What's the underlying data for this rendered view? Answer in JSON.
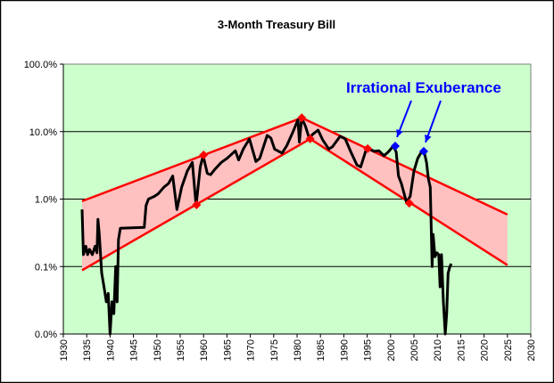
{
  "chart_data": {
    "type": "line",
    "title": "3-Month Treasury Bill",
    "xlabel": "",
    "ylabel": "",
    "xlim": [
      1930,
      2030
    ],
    "ylim": [
      0.01,
      100
    ],
    "y_scale": "log",
    "x_ticks": [
      "1930",
      "1935",
      "1940",
      "1945",
      "1950",
      "1955",
      "1960",
      "1965",
      "1970",
      "1975",
      "1980",
      "1985",
      "1990",
      "1995",
      "2000",
      "2005",
      "2010",
      "2015",
      "2020",
      "2025",
      "2030"
    ],
    "y_ticks": [
      {
        "value": 100,
        "label": "100.0%"
      },
      {
        "value": 10,
        "label": "10.0%"
      },
      {
        "value": 1,
        "label": "1.0%"
      },
      {
        "value": 0.1,
        "label": "0.1%"
      },
      {
        "value": 0.01,
        "label": "0.0%"
      }
    ],
    "grid": "horizontal",
    "legend": "none",
    "colors": {
      "plot_background": "#CCFFCC",
      "channel_fill": "#FFC0C0",
      "channel_line": "#FF0000",
      "series": "#000000",
      "annotation": "#0000FF"
    },
    "series": [
      {
        "values_unit": "percent",
        "points": [
          [
            1934.0,
            0.7
          ],
          [
            1934.3,
            0.15
          ],
          [
            1934.8,
            0.2
          ],
          [
            1935.2,
            0.15
          ],
          [
            1935.6,
            0.18
          ],
          [
            1936.2,
            0.15
          ],
          [
            1936.8,
            0.2
          ],
          [
            1937.2,
            0.16
          ],
          [
            1937.4,
            0.5
          ],
          [
            1937.7,
            0.3
          ],
          [
            1938.2,
            0.08
          ],
          [
            1938.7,
            0.05
          ],
          [
            1939.2,
            0.03
          ],
          [
            1939.6,
            0.04
          ],
          [
            1940.0,
            0.01
          ],
          [
            1940.4,
            0.03
          ],
          [
            1940.8,
            0.02
          ],
          [
            1941.2,
            0.1
          ],
          [
            1941.5,
            0.03
          ],
          [
            1941.8,
            0.25
          ],
          [
            1942.2,
            0.37
          ],
          [
            1947.3,
            0.38
          ],
          [
            1947.7,
            0.8
          ],
          [
            1948.2,
            1.0
          ],
          [
            1949.5,
            1.1
          ],
          [
            1950.3,
            1.2
          ],
          [
            1951.5,
            1.5
          ],
          [
            1952.5,
            1.7
          ],
          [
            1953.4,
            2.2
          ],
          [
            1954.3,
            0.7
          ],
          [
            1955.3,
            1.5
          ],
          [
            1956.5,
            2.6
          ],
          [
            1957.6,
            3.5
          ],
          [
            1958.4,
            0.8
          ],
          [
            1959.3,
            3.0
          ],
          [
            1959.9,
            4.4
          ],
          [
            1960.8,
            2.4
          ],
          [
            1961.5,
            2.3
          ],
          [
            1962.5,
            2.8
          ],
          [
            1963.8,
            3.5
          ],
          [
            1965.0,
            4.0
          ],
          [
            1966.8,
            5.2
          ],
          [
            1967.5,
            3.8
          ],
          [
            1968.5,
            5.5
          ],
          [
            1969.8,
            7.8
          ],
          [
            1971.2,
            3.6
          ],
          [
            1972.0,
            4.0
          ],
          [
            1973.6,
            8.8
          ],
          [
            1974.4,
            8.0
          ],
          [
            1975.2,
            5.5
          ],
          [
            1976.8,
            4.8
          ],
          [
            1977.8,
            6.2
          ],
          [
            1979.0,
            9.5
          ],
          [
            1980.2,
            15.0
          ],
          [
            1980.5,
            7.0
          ],
          [
            1981.0,
            16.0
          ],
          [
            1981.8,
            12.0
          ],
          [
            1982.6,
            8.0
          ],
          [
            1983.4,
            9.2
          ],
          [
            1984.5,
            10.5
          ],
          [
            1985.5,
            7.5
          ],
          [
            1986.8,
            5.5
          ],
          [
            1987.6,
            6.0
          ],
          [
            1989.2,
            8.5
          ],
          [
            1990.3,
            7.8
          ],
          [
            1991.5,
            5.0
          ],
          [
            1992.8,
            3.2
          ],
          [
            1993.6,
            3.0
          ],
          [
            1994.8,
            5.5
          ],
          [
            1995.5,
            5.5
          ],
          [
            1996.5,
            5.1
          ],
          [
            1997.5,
            5.2
          ],
          [
            1998.6,
            4.4
          ],
          [
            1999.5,
            5.0
          ],
          [
            2000.6,
            6.1
          ],
          [
            2001.2,
            5.0
          ],
          [
            2001.7,
            2.2
          ],
          [
            2002.3,
            1.7
          ],
          [
            2003.4,
            0.9
          ],
          [
            2004.2,
            1.1
          ],
          [
            2005.0,
            2.6
          ],
          [
            2005.8,
            4.0
          ],
          [
            2006.6,
            5.0
          ],
          [
            2007.2,
            5.0
          ],
          [
            2007.7,
            3.5
          ],
          [
            2008.1,
            2.0
          ],
          [
            2008.5,
            1.5
          ],
          [
            2008.9,
            0.1
          ],
          [
            2009.1,
            0.3
          ],
          [
            2009.5,
            0.14
          ],
          [
            2009.9,
            0.16
          ],
          [
            2010.3,
            0.15
          ],
          [
            2010.6,
            0.05
          ],
          [
            2010.9,
            0.15
          ],
          [
            2011.3,
            0.03
          ],
          [
            2011.7,
            0.01
          ],
          [
            2012.0,
            0.02
          ],
          [
            2012.3,
            0.08
          ],
          [
            2012.7,
            0.1
          ],
          [
            2013.0,
            0.11
          ]
        ]
      }
    ],
    "channel": {
      "upper": [
        [
          1934.0,
          0.93
        ],
        [
          1981.0,
          16.0
        ],
        [
          2025.0,
          0.59
        ]
      ],
      "lower": [
        [
          1934.0,
          0.088
        ],
        [
          1982.8,
          7.8
        ],
        [
          2025.0,
          0.105
        ]
      ]
    },
    "markers_red": [
      [
        1958.5,
        0.82
      ],
      [
        1960.0,
        4.5
      ],
      [
        1981.0,
        16.0
      ],
      [
        1982.8,
        7.8
      ],
      [
        1995.1,
        5.6
      ],
      [
        2004.0,
        0.87
      ]
    ],
    "markers_blue": [
      [
        2001.0,
        6.1
      ],
      [
        2007.1,
        5.1
      ]
    ],
    "annotations": [
      {
        "text": "Irrational Exuberance",
        "arrows_to": [
          [
            2001.0,
            6.1
          ],
          [
            2007.1,
            5.1
          ]
        ]
      }
    ]
  }
}
